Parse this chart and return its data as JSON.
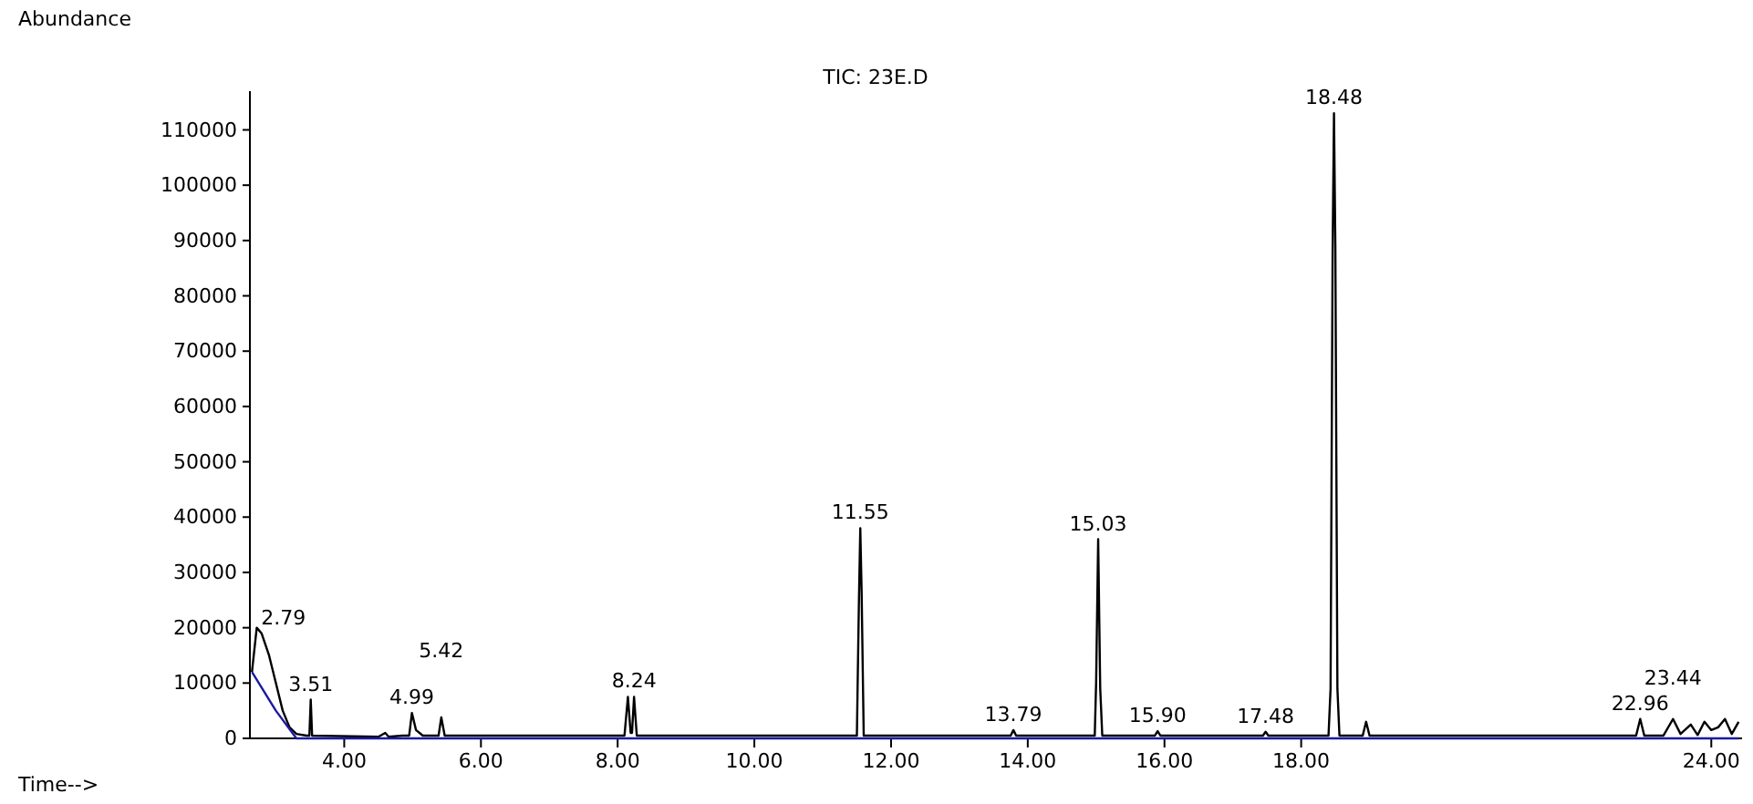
{
  "chart_data": {
    "type": "line",
    "title": "TIC: 23E.D",
    "xlabel": "Time-->",
    "ylabel": "Abundance",
    "xlim": [
      2.62,
      24.45
    ],
    "ylim": [
      0,
      117000
    ],
    "xticks": [
      {
        "value": 4,
        "label": "4.00"
      },
      {
        "value": 6,
        "label": "6.00"
      },
      {
        "value": 8,
        "label": "8.00"
      },
      {
        "value": 10,
        "label": "10.00"
      },
      {
        "value": 12,
        "label": "12.00"
      },
      {
        "value": 14,
        "label": "14.00"
      },
      {
        "value": 16,
        "label": "16.00"
      },
      {
        "value": 18,
        "label": "18.00"
      },
      {
        "value": 24,
        "label": "24.00"
      }
    ],
    "yticks": [
      0,
      10000,
      20000,
      30000,
      40000,
      50000,
      60000,
      70000,
      80000,
      90000,
      100000,
      110000
    ],
    "grid": false,
    "marker": "none",
    "line_style": "solid",
    "series": [
      {
        "color": "#000000",
        "x": [
          2.65,
          2.72,
          2.79,
          2.9,
          3.0,
          3.1,
          3.2,
          3.3,
          3.45,
          3.49,
          3.51,
          3.53,
          4.5,
          4.6,
          4.65,
          4.85,
          4.95,
          4.99,
          5.05,
          5.15,
          5.38,
          5.42,
          5.47,
          8.1,
          8.15,
          8.19,
          8.21,
          8.24,
          8.28,
          11.5,
          11.53,
          11.55,
          11.57,
          11.6,
          13.75,
          13.79,
          13.83,
          14.98,
          15.0,
          15.03,
          15.06,
          15.09,
          15.86,
          15.9,
          15.94,
          17.44,
          17.48,
          17.52,
          18.4,
          18.43,
          18.46,
          18.48,
          18.5,
          18.53,
          18.56,
          18.9,
          18.95,
          19.0,
          22.9,
          22.96,
          23.02,
          23.3,
          23.44,
          23.55,
          23.7,
          23.8,
          23.9,
          24.0,
          24.1,
          24.2,
          24.3,
          24.4
        ],
        "values": [
          12000,
          20000,
          19000,
          15000,
          10000,
          5000,
          2000,
          800,
          500,
          500,
          7000,
          500,
          300,
          1000,
          300,
          500,
          500,
          4600,
          1500,
          500,
          500,
          3800,
          500,
          500,
          7500,
          1000,
          1000,
          7500,
          500,
          500,
          25000,
          38000,
          26000,
          500,
          500,
          1500,
          500,
          500,
          10000,
          36000,
          9000,
          500,
          500,
          1300,
          500,
          500,
          1200,
          500,
          500,
          9000,
          88000,
          113000,
          89000,
          9000,
          500,
          500,
          3000,
          500,
          500,
          3500,
          500,
          500,
          3500,
          800,
          2500,
          600,
          3000,
          1500,
          2000,
          3500,
          800,
          3000
        ]
      },
      {
        "color": "#1a1aa0",
        "x": [
          2.65,
          3.0,
          3.3,
          24.4
        ],
        "values": [
          12000,
          5000,
          0,
          0
        ]
      }
    ],
    "annotations": [
      {
        "text": "2.79",
        "x": 2.79,
        "y": 19000
      },
      {
        "text": "3.51",
        "x": 3.51,
        "y": 7000
      },
      {
        "text": "4.99",
        "x": 4.99,
        "y": 4600
      },
      {
        "text": "5.42",
        "x": 5.42,
        "y": 3800
      },
      {
        "text": "8.24",
        "x": 8.24,
        "y": 7500
      },
      {
        "text": "11.55",
        "x": 11.55,
        "y": 38000
      },
      {
        "text": "13.79",
        "x": 13.79,
        "y": 1500
      },
      {
        "text": "15.03",
        "x": 15.03,
        "y": 36000
      },
      {
        "text": "15.90",
        "x": 15.9,
        "y": 1300
      },
      {
        "text": "17.48",
        "x": 17.48,
        "y": 1200
      },
      {
        "text": "18.48",
        "x": 18.48,
        "y": 113000
      },
      {
        "text": "22.96",
        "x": 22.96,
        "y": 3500
      },
      {
        "text": "23.44",
        "x": 23.44,
        "y": 3500
      }
    ]
  }
}
